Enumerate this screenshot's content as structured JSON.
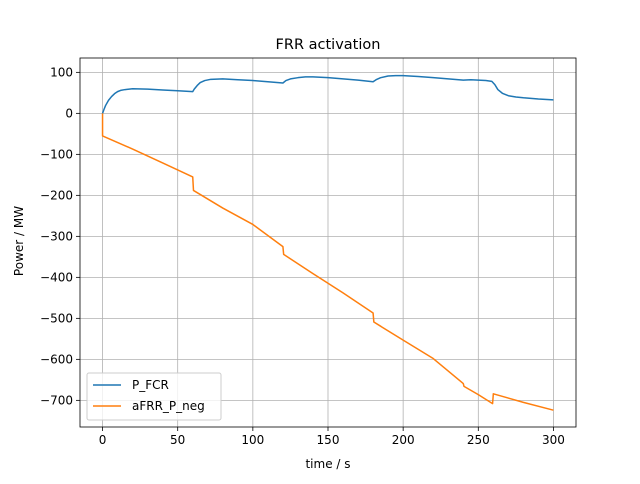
{
  "chart_data": {
    "type": "line",
    "title": "FRR activation",
    "xlabel": "time / s",
    "ylabel": "Power / MW",
    "xlim": [
      -15,
      315
    ],
    "ylim": [
      -765,
      135
    ],
    "x_ticks": [
      0,
      50,
      100,
      150,
      200,
      250,
      300
    ],
    "y_ticks": [
      100,
      0,
      -100,
      -200,
      -300,
      -400,
      -500,
      -600,
      -700
    ],
    "grid": true,
    "legend_position": "lower-left",
    "series": [
      {
        "name": "P_FCR",
        "color": "#1f77b4",
        "points": [
          [
            0,
            0
          ],
          [
            1,
            10
          ],
          [
            2,
            19
          ],
          [
            4,
            32
          ],
          [
            6,
            41
          ],
          [
            8,
            48
          ],
          [
            10,
            53
          ],
          [
            12,
            56
          ],
          [
            15,
            58
          ],
          [
            20,
            60
          ],
          [
            30,
            59
          ],
          [
            40,
            57
          ],
          [
            50,
            55
          ],
          [
            60,
            53
          ],
          [
            61,
            59
          ],
          [
            63,
            68
          ],
          [
            65,
            75
          ],
          [
            68,
            80
          ],
          [
            72,
            83
          ],
          [
            80,
            84
          ],
          [
            90,
            82
          ],
          [
            100,
            80
          ],
          [
            110,
            77
          ],
          [
            120,
            74
          ],
          [
            122,
            80
          ],
          [
            125,
            84
          ],
          [
            130,
            87
          ],
          [
            135,
            89
          ],
          [
            140,
            89
          ],
          [
            150,
            87
          ],
          [
            160,
            84
          ],
          [
            170,
            81
          ],
          [
            180,
            77
          ],
          [
            182,
            82
          ],
          [
            185,
            87
          ],
          [
            190,
            91
          ],
          [
            195,
            92
          ],
          [
            200,
            92
          ],
          [
            210,
            90
          ],
          [
            220,
            87
          ],
          [
            230,
            84
          ],
          [
            240,
            81
          ],
          [
            245,
            82
          ],
          [
            250,
            81
          ],
          [
            255,
            80
          ],
          [
            259,
            78
          ],
          [
            261,
            70
          ],
          [
            263,
            58
          ],
          [
            266,
            49
          ],
          [
            270,
            43
          ],
          [
            275,
            40
          ],
          [
            280,
            38
          ],
          [
            290,
            35
          ],
          [
            300,
            33
          ]
        ]
      },
      {
        "name": "aFRR_P_neg",
        "color": "#ff7f0e",
        "points": [
          [
            0,
            0
          ],
          [
            0,
            -55
          ],
          [
            20,
            -87
          ],
          [
            40,
            -121
          ],
          [
            60,
            -155
          ],
          [
            60.5,
            -188
          ],
          [
            80,
            -231
          ],
          [
            100,
            -271
          ],
          [
            120,
            -325
          ],
          [
            120.5,
            -344
          ],
          [
            140,
            -391
          ],
          [
            160,
            -438
          ],
          [
            180,
            -487
          ],
          [
            180.5,
            -509
          ],
          [
            200,
            -553
          ],
          [
            220,
            -598
          ],
          [
            240,
            -659
          ],
          [
            240.5,
            -666
          ],
          [
            250,
            -686
          ],
          [
            259.5,
            -708
          ],
          [
            260,
            -684
          ],
          [
            280,
            -705
          ],
          [
            300,
            -724
          ]
        ]
      }
    ]
  }
}
